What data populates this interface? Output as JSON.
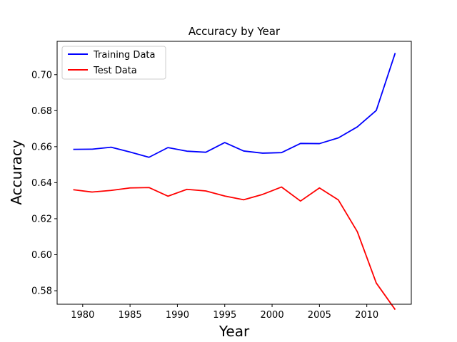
{
  "chart_data": {
    "type": "line",
    "title": "Accuracy by Year",
    "xlabel": "Year",
    "ylabel": "Accuracy",
    "xlim": [
      1977.3,
      2014.7
    ],
    "ylim": [
      0.5725,
      0.7185
    ],
    "x_ticks": [
      "1980",
      "1985",
      "1990",
      "1995",
      "2000",
      "2005",
      "2010"
    ],
    "y_ticks": [
      "0.58",
      "0.60",
      "0.62",
      "0.64",
      "0.66",
      "0.68",
      "0.70"
    ],
    "grid": false,
    "legend_position": "upper-left",
    "x": [
      1979,
      1981,
      1983,
      1985,
      1987,
      1989,
      1991,
      1993,
      1995,
      1997,
      1999,
      2001,
      2003,
      2005,
      2007,
      2009,
      2011,
      2013
    ],
    "series": [
      {
        "name": "Training Data",
        "color": "#0000ff",
        "values": [
          0.6585,
          0.6586,
          0.6597,
          0.657,
          0.6541,
          0.6595,
          0.6575,
          0.6569,
          0.6623,
          0.6576,
          0.6564,
          0.6567,
          0.6618,
          0.6617,
          0.6649,
          0.671,
          0.6801,
          0.712
        ]
      },
      {
        "name": "Test Data",
        "color": "#ff0000",
        "values": [
          0.6361,
          0.6348,
          0.6357,
          0.6371,
          0.6373,
          0.6325,
          0.6363,
          0.6354,
          0.6326,
          0.6305,
          0.6335,
          0.6376,
          0.6298,
          0.6371,
          0.6304,
          0.6128,
          0.5843,
          0.5695
        ]
      }
    ]
  }
}
